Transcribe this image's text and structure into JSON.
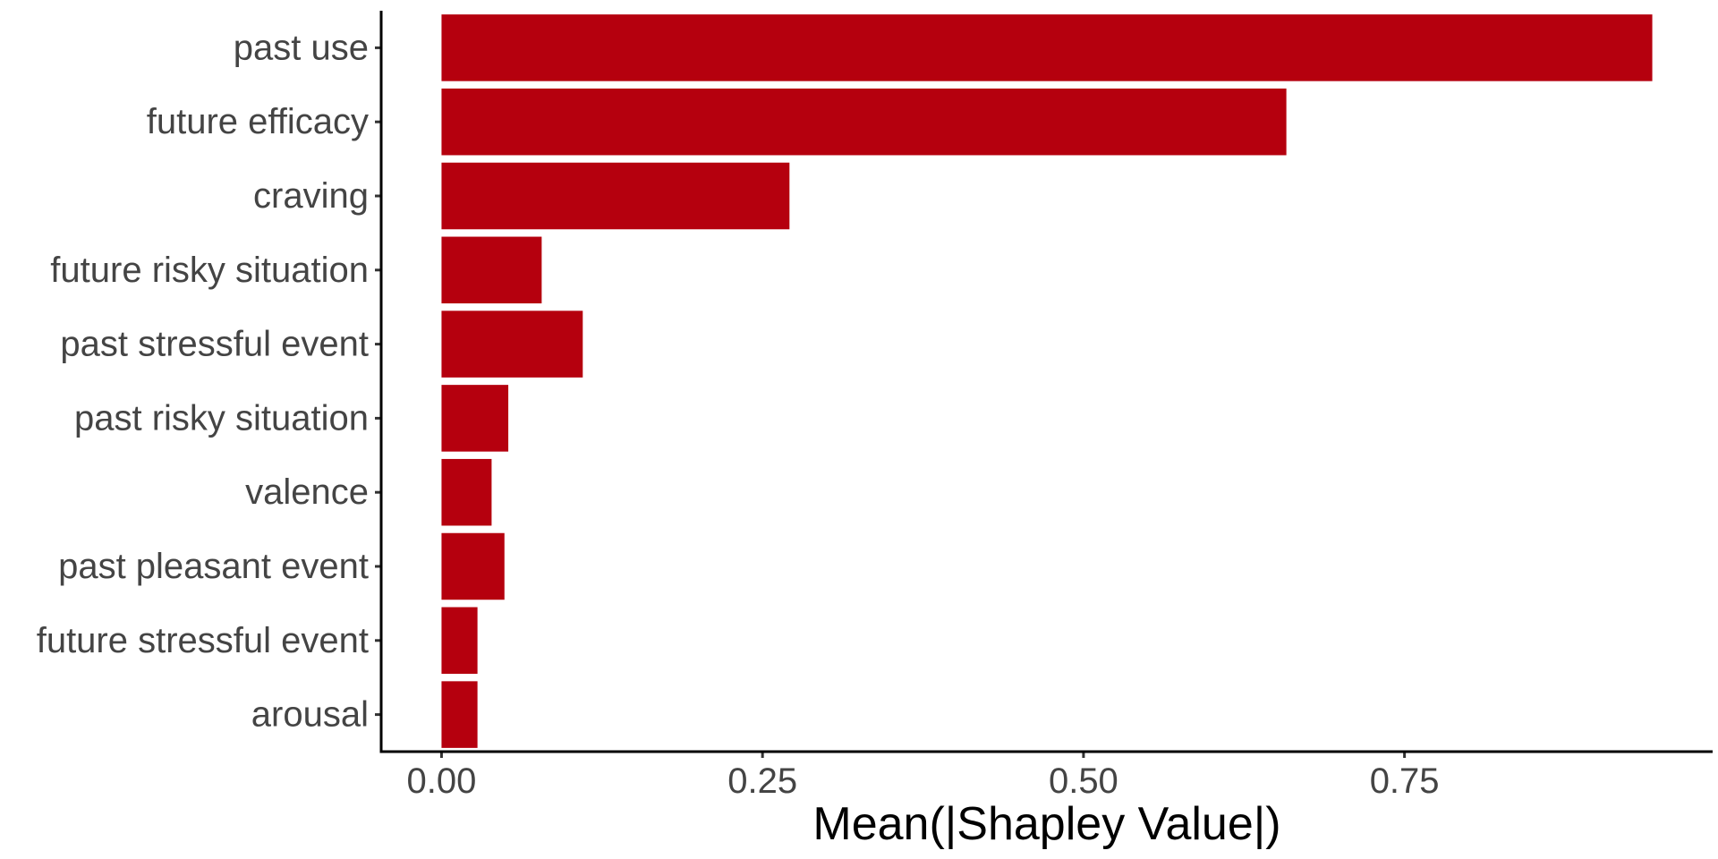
{
  "chart_data": {
    "type": "bar",
    "orientation": "horizontal",
    "categories": [
      "past use",
      "future efficacy",
      "craving",
      "future risky situation",
      "past stressful event",
      "past risky situation",
      "valence",
      "past pleasant event",
      "future stressful event",
      "arousal"
    ],
    "values": [
      0.943,
      0.658,
      0.271,
      0.078,
      0.11,
      0.052,
      0.039,
      0.049,
      0.028,
      0.028
    ],
    "xlabel": "Mean(|Shapley Value|)",
    "ylabel": "",
    "title": "",
    "xlim": [
      -0.047,
      0.99
    ],
    "xticks": [
      0,
      0.25,
      0.5,
      0.75
    ],
    "xtick_labels": [
      "0.00",
      "0.25",
      "0.50",
      "0.75"
    ],
    "grid": false,
    "legend": "none",
    "bar_color": "#B5000E"
  }
}
